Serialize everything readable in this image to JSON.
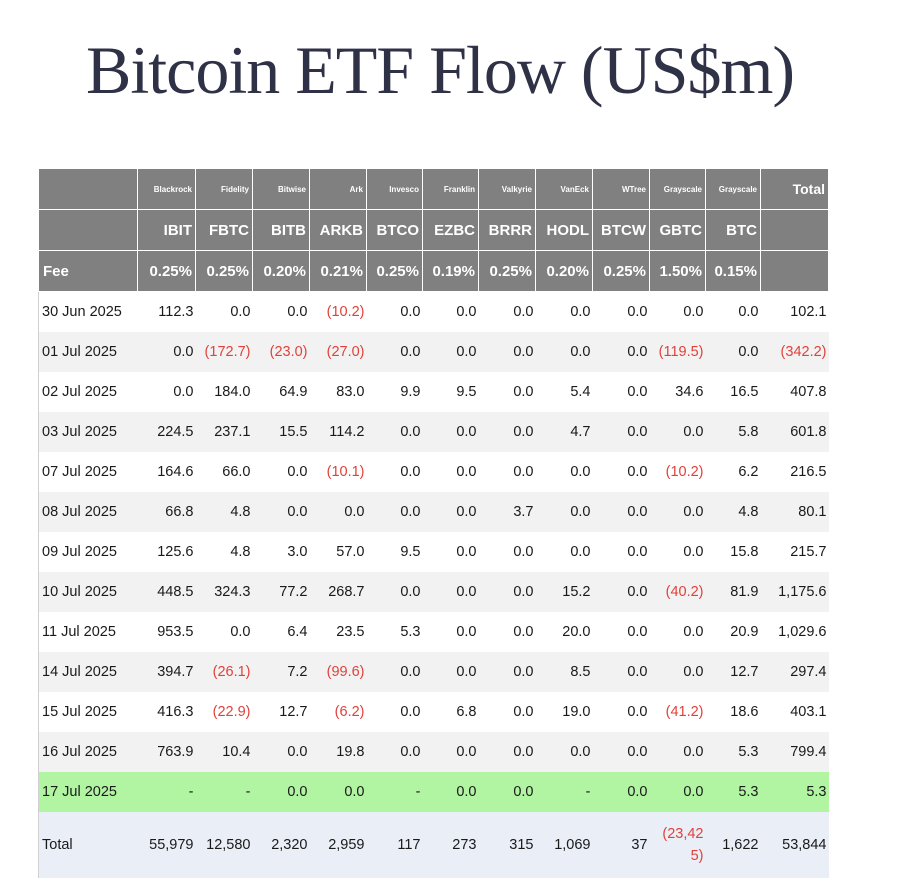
{
  "title": "Bitcoin ETF Flow (US$m)",
  "table": {
    "issuers": [
      "Blackrock",
      "Fidelity",
      "Bitwise",
      "Ark",
      "Invesco",
      "Franklin",
      "Valkyrie",
      "VanEck",
      "WTree",
      "Grayscale",
      "Grayscale"
    ],
    "total_header": "Total",
    "tickers": [
      "IBIT",
      "FBTC",
      "BITB",
      "ARKB",
      "BTCO",
      "EZBC",
      "BRRR",
      "HODL",
      "BTCW",
      "GBTC",
      "BTC"
    ],
    "fee_label": "Fee",
    "fees": [
      "0.25%",
      "0.25%",
      "0.20%",
      "0.21%",
      "0.25%",
      "0.19%",
      "0.25%",
      "0.20%",
      "0.25%",
      "1.50%",
      "0.15%"
    ],
    "rows": [
      {
        "date": "30 Jun 2025",
        "values": [
          "112.3",
          "0.0",
          "0.0",
          "(10.2)",
          "0.0",
          "0.0",
          "0.0",
          "0.0",
          "0.0",
          "0.0",
          "0.0",
          "102.1"
        ]
      },
      {
        "date": "01 Jul 2025",
        "values": [
          "0.0",
          "(172.7)",
          "(23.0)",
          "(27.0)",
          "0.0",
          "0.0",
          "0.0",
          "0.0",
          "0.0",
          "(119.5)",
          "0.0",
          "(342.2)"
        ]
      },
      {
        "date": "02 Jul 2025",
        "values": [
          "0.0",
          "184.0",
          "64.9",
          "83.0",
          "9.9",
          "9.5",
          "0.0",
          "5.4",
          "0.0",
          "34.6",
          "16.5",
          "407.8"
        ]
      },
      {
        "date": "03 Jul 2025",
        "values": [
          "224.5",
          "237.1",
          "15.5",
          "114.2",
          "0.0",
          "0.0",
          "0.0",
          "4.7",
          "0.0",
          "0.0",
          "5.8",
          "601.8"
        ]
      },
      {
        "date": "07 Jul 2025",
        "values": [
          "164.6",
          "66.0",
          "0.0",
          "(10.1)",
          "0.0",
          "0.0",
          "0.0",
          "0.0",
          "0.0",
          "(10.2)",
          "6.2",
          "216.5"
        ]
      },
      {
        "date": "08 Jul 2025",
        "values": [
          "66.8",
          "4.8",
          "0.0",
          "0.0",
          "0.0",
          "0.0",
          "3.7",
          "0.0",
          "0.0",
          "0.0",
          "4.8",
          "80.1"
        ]
      },
      {
        "date": "09 Jul 2025",
        "values": [
          "125.6",
          "4.8",
          "3.0",
          "57.0",
          "9.5",
          "0.0",
          "0.0",
          "0.0",
          "0.0",
          "0.0",
          "15.8",
          "215.7"
        ]
      },
      {
        "date": "10 Jul 2025",
        "values": [
          "448.5",
          "324.3",
          "77.2",
          "268.7",
          "0.0",
          "0.0",
          "0.0",
          "15.2",
          "0.0",
          "(40.2)",
          "81.9",
          "1,175.6"
        ]
      },
      {
        "date": "11 Jul 2025",
        "values": [
          "953.5",
          "0.0",
          "6.4",
          "23.5",
          "5.3",
          "0.0",
          "0.0",
          "20.0",
          "0.0",
          "0.0",
          "20.9",
          "1,029.6"
        ]
      },
      {
        "date": "14 Jul 2025",
        "values": [
          "394.7",
          "(26.1)",
          "7.2",
          "(99.6)",
          "0.0",
          "0.0",
          "0.0",
          "8.5",
          "0.0",
          "0.0",
          "12.7",
          "297.4"
        ]
      },
      {
        "date": "15 Jul 2025",
        "values": [
          "416.3",
          "(22.9)",
          "12.7",
          "(6.2)",
          "0.0",
          "6.8",
          "0.0",
          "19.0",
          "0.0",
          "(41.2)",
          "18.6",
          "403.1"
        ]
      },
      {
        "date": "16 Jul 2025",
        "values": [
          "763.9",
          "10.4",
          "0.0",
          "19.8",
          "0.0",
          "0.0",
          "0.0",
          "0.0",
          "0.0",
          "0.0",
          "5.3",
          "799.4"
        ]
      },
      {
        "date": "17 Jul 2025",
        "values": [
          "-",
          "-",
          "0.0",
          "0.0",
          "-",
          "0.0",
          "0.0",
          "-",
          "0.0",
          "0.0",
          "5.3",
          "5.3"
        ],
        "highlight": true
      }
    ],
    "total_row": {
      "label": "Total",
      "values": [
        "55,979",
        "12,580",
        "2,320",
        "2,959",
        "117",
        "273",
        "315",
        "1,069",
        "37",
        "(23,425)",
        "1,622",
        "53,844"
      ]
    },
    "colors": {
      "header_bg": "#808080",
      "negative": "#e0423b",
      "highlight": "#b1f5a2",
      "total_bg": "#e9eef7",
      "zebra": "#f2f2f2"
    }
  }
}
